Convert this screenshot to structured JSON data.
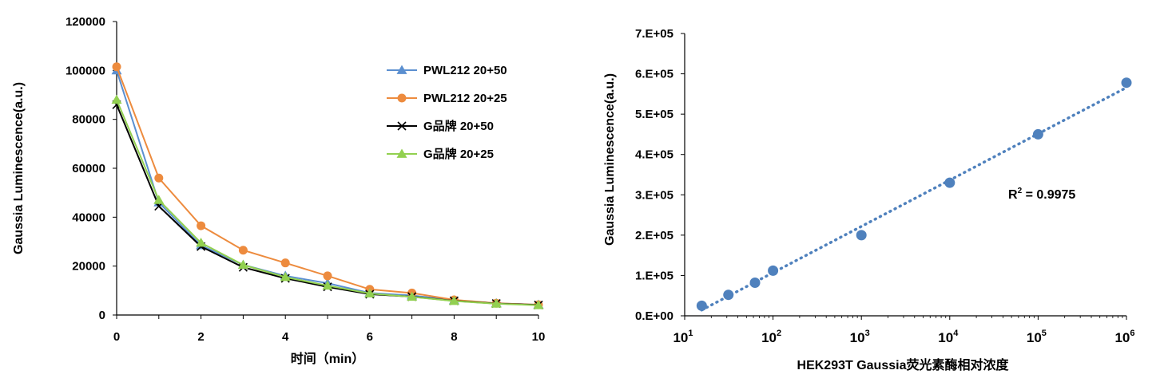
{
  "chart_data": [
    {
      "type": "line",
      "title": "",
      "xlabel": "时间（min）",
      "ylabel": "Gaussia Luminescence(a.u.)",
      "xlim": [
        0,
        10
      ],
      "ylim": [
        0,
        120000
      ],
      "xticks": [
        "0",
        "2",
        "4",
        "6",
        "8",
        "10"
      ],
      "yticks": [
        "0",
        "20000",
        "40000",
        "60000",
        "80000",
        "100000",
        "120000"
      ],
      "legend_position": "top-right",
      "grid": false,
      "x": [
        0,
        1,
        2,
        3,
        4,
        5,
        6,
        7,
        8,
        9,
        10
      ],
      "series": [
        {
          "name": "PWL212 20+50",
          "marker": "triangle",
          "color": "#5B8FD0",
          "values": [
            100000,
            46000,
            28500,
            20500,
            16000,
            13000,
            9000,
            8000,
            6000,
            4800,
            4200
          ]
        },
        {
          "name": "PWL212 20+25",
          "marker": "circle",
          "color": "#ED8B3E",
          "values": [
            101500,
            56000,
            36500,
            26500,
            21300,
            16000,
            10500,
            9000,
            6200,
            4800,
            4200
          ]
        },
        {
          "name": "G品牌 20+50",
          "marker": "x",
          "color": "#000000",
          "values": [
            86000,
            44500,
            28000,
            19500,
            15000,
            11500,
            8500,
            7500,
            5800,
            4700,
            4100
          ]
        },
        {
          "name": "G品牌 20+25",
          "marker": "triangle",
          "color": "#92D050",
          "values": [
            88000,
            47000,
            29500,
            20500,
            15500,
            12000,
            8800,
            7400,
            5700,
            4600,
            4000
          ]
        }
      ]
    },
    {
      "type": "scatter",
      "title": "",
      "xlabel": "HEK293T Gaussia荧光素酶相对浓度",
      "ylabel": "Gaussia Luminescence(a.u.)",
      "xscale": "log",
      "xlim": [
        10,
        1000000
      ],
      "ylim": [
        0,
        700000
      ],
      "xticks": [
        {
          "base": "10",
          "exp": "1"
        },
        {
          "base": "10",
          "exp": "2"
        },
        {
          "base": "10",
          "exp": "3"
        },
        {
          "base": "10",
          "exp": "4"
        },
        {
          "base": "10",
          "exp": "5"
        },
        {
          "base": "10",
          "exp": "6"
        }
      ],
      "yticks": [
        "0.E+00",
        "1.E+05",
        "2.E+05",
        "3.E+05",
        "4.E+05",
        "5.E+05",
        "6.E+05",
        "7.E+05"
      ],
      "grid": false,
      "trendline": "linear (dotted)",
      "color": "#4F81BD",
      "points": [
        {
          "x": 15.6,
          "y": 25000
        },
        {
          "x": 31.25,
          "y": 52000
        },
        {
          "x": 62.5,
          "y": 82000
        },
        {
          "x": 100,
          "y": 112000
        },
        {
          "x": 1000,
          "y": 200000
        },
        {
          "x": 10000,
          "y": 330000
        },
        {
          "x": 100000,
          "y": 450000
        },
        {
          "x": 1000000,
          "y": 578000
        }
      ],
      "annotation": {
        "label": "R",
        "sup": "2",
        "value": " = 0.9975"
      }
    }
  ]
}
